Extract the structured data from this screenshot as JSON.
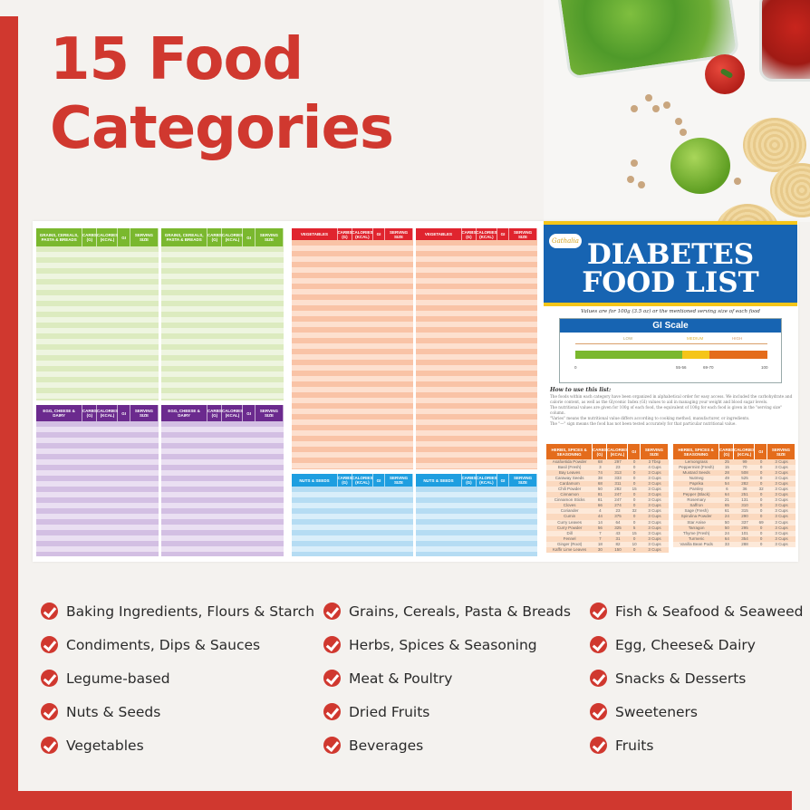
{
  "headline": {
    "line1": "15 Food",
    "line2": "Categories"
  },
  "colors": {
    "brand_red": "#d0382f",
    "grains_green": "#7ab82e",
    "dairy_purple": "#6b2a8e",
    "vegetables_red": "#e0242e",
    "nuts_blue": "#1e9ee0",
    "herbs_orange": "#e46c1c",
    "title_blue": "#1764b2",
    "gi_low": "#7ab82e",
    "gi_medium": "#f5c518",
    "gi_high": "#e46c1c"
  },
  "poster": {
    "logo": "Gathalia",
    "title_line1": "DIABETES",
    "title_line2": "FOOD LIST",
    "subtitle": "Values are for 100g (3.5 oz) or the mentioned serving size of each food",
    "gi_scale": {
      "title": "GI Scale",
      "labels": [
        "LOW",
        "MEDIUM",
        "HIGH"
      ],
      "ticks": [
        "0",
        "55-56",
        "69-70",
        "100"
      ]
    },
    "how_to": {
      "heading": "How to use this list:",
      "lines": [
        "The foods within each category have been organized in alphabetical order for easy access. We included the carbohydrate and calorie content, as well as the Glycemic Index (GI) values to aid in managing your weight and blood sugar levels.",
        "The nutritional values are given for 100g of each food, the equivalent of 100g for each food is given in the \"serving size\" column.",
        "\"Varies\" means the nutritional value differs according to cooking method, manufacturer, or ingredients.",
        "The \"—\" sign means the food has not been tested accurately for that particular nutritional value."
      ]
    },
    "table_headers": {
      "grains": "GRAINS, CEREALS, PASTA & BREADS",
      "dairy": "EGG, CHEESE & DAIRY",
      "vegetables": "VEGETABLES",
      "nuts": "NUTS & SEEDS",
      "herbs": "HERBS, SPICES & SEASONING",
      "carbs": "CARBS (G)",
      "calories": "CALORIES (KCAL)",
      "gi": "GI",
      "serving": "SERVING SIZE"
    },
    "herbs_left": [
      [
        "Asafoetida Powder",
        "68",
        "297",
        "0",
        "3 Tbsp"
      ],
      [
        "Basil (Fresh)",
        "3",
        "23",
        "0",
        "4 Cups"
      ],
      [
        "Bay Leaves",
        "74",
        "313",
        "0",
        "3 Cups"
      ],
      [
        "Caraway Seeds",
        "38",
        "333",
        "0",
        "3 Cups"
      ],
      [
        "Cardamom",
        "68",
        "311",
        "0",
        "3 Cups"
      ],
      [
        "Chili Powder",
        "50",
        "282",
        "15",
        "3 Cups"
      ],
      [
        "Cinnamon",
        "81",
        "247",
        "0",
        "3 Cups"
      ],
      [
        "Cinnamon Sticks",
        "81",
        "247",
        "0",
        "3 Cups"
      ],
      [
        "Cloves",
        "66",
        "274",
        "0",
        "3 Cups"
      ],
      [
        "Coriander",
        "4",
        "23",
        "32",
        "3 Cups"
      ],
      [
        "Cumin",
        "44",
        "375",
        "0",
        "3 Cups"
      ],
      [
        "Curry Leaves",
        "14",
        "64",
        "0",
        "3 Cups"
      ],
      [
        "Curry Powder",
        "56",
        "325",
        "5",
        "3 Cups"
      ],
      [
        "Dill",
        "7",
        "43",
        "15",
        "3 Cups"
      ],
      [
        "Fennel",
        "7",
        "31",
        "0",
        "3 Cups"
      ],
      [
        "Ginger (Root)",
        "18",
        "82",
        "10",
        "3 Cups"
      ],
      [
        "Kaffir Lime Leaves",
        "30",
        "150",
        "0",
        "3 Cups"
      ]
    ],
    "herbs_right": [
      [
        "Lemongrass",
        "25",
        "99",
        "0",
        "3 Cups"
      ],
      [
        "Peppermint (Fresh)",
        "15",
        "70",
        "0",
        "3 Cups"
      ],
      [
        "Mustard Seeds",
        "28",
        "508",
        "0",
        "3 Cups"
      ],
      [
        "Nutmeg",
        "49",
        "525",
        "0",
        "3 Cups"
      ],
      [
        "Paprika",
        "54",
        "282",
        "0",
        "3 Cups"
      ],
      [
        "Parsley",
        "6",
        "36",
        "32",
        "3 Cups"
      ],
      [
        "Pepper (Black)",
        "64",
        "251",
        "0",
        "3 Cups"
      ],
      [
        "Rosemary",
        "21",
        "131",
        "0",
        "3 Cups"
      ],
      [
        "Saffron",
        "65",
        "310",
        "0",
        "3 Cups"
      ],
      [
        "Sage (Fresh)",
        "61",
        "315",
        "0",
        "3 Cups"
      ],
      [
        "Spirulina Powder",
        "24",
        "290",
        "0",
        "3 Cups"
      ],
      [
        "Star Anise",
        "50",
        "337",
        "69",
        "3 Cups"
      ],
      [
        "Tarragon",
        "50",
        "295",
        "0",
        "3 Cups"
      ],
      [
        "Thyme (Fresh)",
        "24",
        "101",
        "0",
        "3 Cups"
      ],
      [
        "Turmeric",
        "64",
        "354",
        "0",
        "3 Cups"
      ],
      [
        "Vanilla Bean Pods",
        "33",
        "288",
        "0",
        "3 Cups"
      ]
    ]
  },
  "categories": {
    "col1": [
      "Baking Ingredients, Flours & Starch",
      "Condiments, Dips & Sauces",
      "Legume-based",
      "Nuts & Seeds",
      "Vegetables"
    ],
    "col2": [
      "Grains, Cereals, Pasta & Breads",
      "Herbs, Spices & Seasoning",
      "Meat & Poultry",
      "Dried Fruits",
      "Beverages"
    ],
    "col3": [
      "Fish & Seafood & Seaweed",
      "Egg, Cheese& Dairy",
      "Snacks & Desserts",
      "Sweeteners",
      "Fruits"
    ]
  }
}
